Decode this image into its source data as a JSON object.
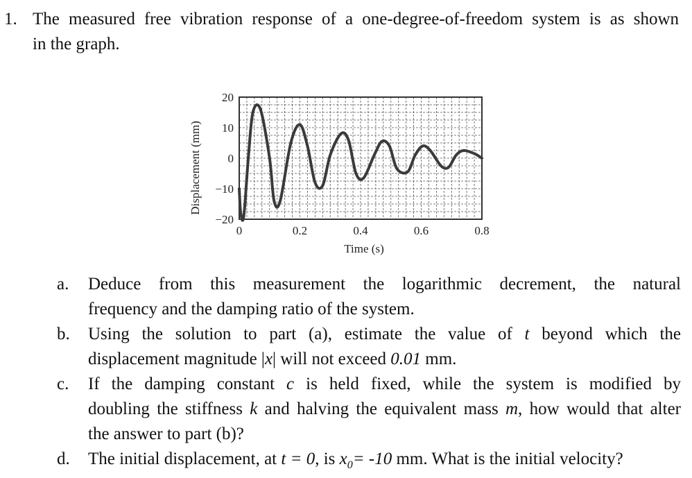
{
  "question": {
    "number": "1.",
    "line1": "The measured free vibration response of a one-degree-of-freedom system is as shown",
    "line2": "in the graph."
  },
  "chart_data": {
    "type": "line",
    "title": "",
    "xlabel": "Time (s)",
    "ylabel": "Displacement (mm)",
    "xlim": [
      0,
      0.8
    ],
    "ylim": [
      -20,
      20
    ],
    "xticks": [
      "0",
      "0.2",
      "0.4",
      "0.6",
      "0.8"
    ],
    "yticks": [
      "20",
      "10",
      "0",
      "−10",
      "−20"
    ],
    "grid": true,
    "series": [
      {
        "x": [
          0,
          0.005,
          0.015,
          0.03,
          0.045,
          0.07,
          0.1,
          0.115,
          0.135,
          0.17,
          0.2,
          0.225,
          0.25,
          0.275,
          0.3,
          0.335,
          0.36,
          0.385,
          0.41,
          0.445,
          0.47,
          0.495,
          0.52,
          0.555,
          0.58,
          0.605,
          0.63,
          0.665,
          0.69,
          0.715,
          0.74,
          0.775,
          0.8
        ],
        "y": [
          -10,
          -18,
          -19,
          0,
          15,
          16,
          0,
          -14,
          -14,
          5,
          11,
          4,
          -8,
          -9,
          1,
          8,
          6,
          -5,
          -6.5,
          1,
          5.5,
          4,
          -3.5,
          -4.5,
          1,
          4,
          2.5,
          -2.5,
          -3,
          1,
          2.5,
          1.5,
          0
        ]
      }
    ]
  },
  "parts": [
    {
      "label": "a.",
      "line1": "Deduce from this measurement the logarithmic decrement, the natural",
      "line2": "frequency and the damping ratio of the system."
    },
    {
      "label": "b.",
      "line1_pre": "Using the solution to part (a), estimate the value of ",
      "line1_var": "t",
      "line1_post": " beyond which the",
      "line2_pre": "displacement magnitude |",
      "line2_var": "x",
      "line2_mid": "| will not exceed ",
      "line2_val": "0.01",
      "line2_post": " mm."
    },
    {
      "label": "c.",
      "line1_pre": "If the damping constant ",
      "line1_var": "c",
      "line1_post": " is held fixed, while the system is modified by",
      "line2_pre": "doubling the stiffness ",
      "line2_var_k": "k",
      "line2_mid": " and halving the equivalent mass ",
      "line2_var_m": "m",
      "line2_post": ", how would that alter",
      "line3": "the answer to part (b)?"
    },
    {
      "label": "d.",
      "pre": "The initial displacement, at ",
      "t_eq": "t = 0",
      "mid": ", is ",
      "x0_var": "x",
      "x0_sub": "0",
      "x0_eq": "= -10",
      "post": " mm. What is the initial velocity?"
    }
  ]
}
